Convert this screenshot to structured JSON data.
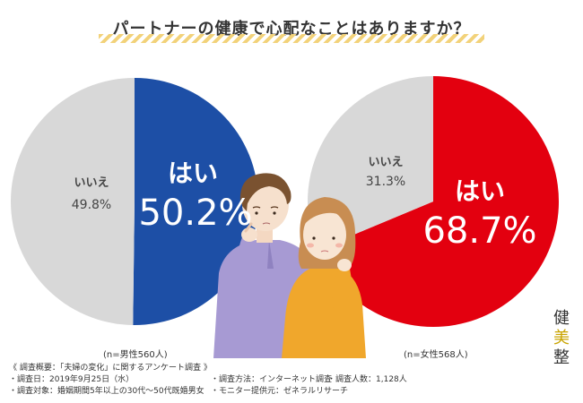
{
  "title": "パートナーの健康で心配なことはありますか？",
  "chart_data": [
    {
      "type": "pie",
      "categories": [
        "はい",
        "いいえ"
      ],
      "values": [
        50.2,
        49.8
      ],
      "value_labels": [
        "50.2%",
        "49.8%"
      ],
      "colors": [
        "#1d4fa6",
        "#d8d8d8"
      ],
      "note": "(n=男性560人)"
    },
    {
      "type": "pie",
      "categories": [
        "はい",
        "いいえ"
      ],
      "values": [
        68.7,
        31.3
      ],
      "value_labels": [
        "68.7%",
        "31.3%"
      ],
      "colors": [
        "#e3000f",
        "#d8d8d8"
      ],
      "note": "(n=女性568人)"
    }
  ],
  "notes": {
    "heading": "《 調査概要：「夫婦の変化」に関するアンケート調査 》",
    "date": "・調査日：2019年9月25日（水）",
    "method": "・調査方法：インターネット調査",
    "count": "・調査人数：1,128人",
    "target": "・調査対象：婚姻期間5年以上の30代〜50代既婚男女",
    "provider": "・モニター提供元：ゼネラルリサーチ"
  },
  "brand": {
    "c1": "健",
    "c2": "美",
    "c3": "整"
  },
  "colors": {
    "male": "#1d4fa6",
    "female": "#e3000f",
    "no": "#d8d8d8",
    "stripe": "#f2d27a"
  },
  "illustration": "couple-thinking-illustration"
}
